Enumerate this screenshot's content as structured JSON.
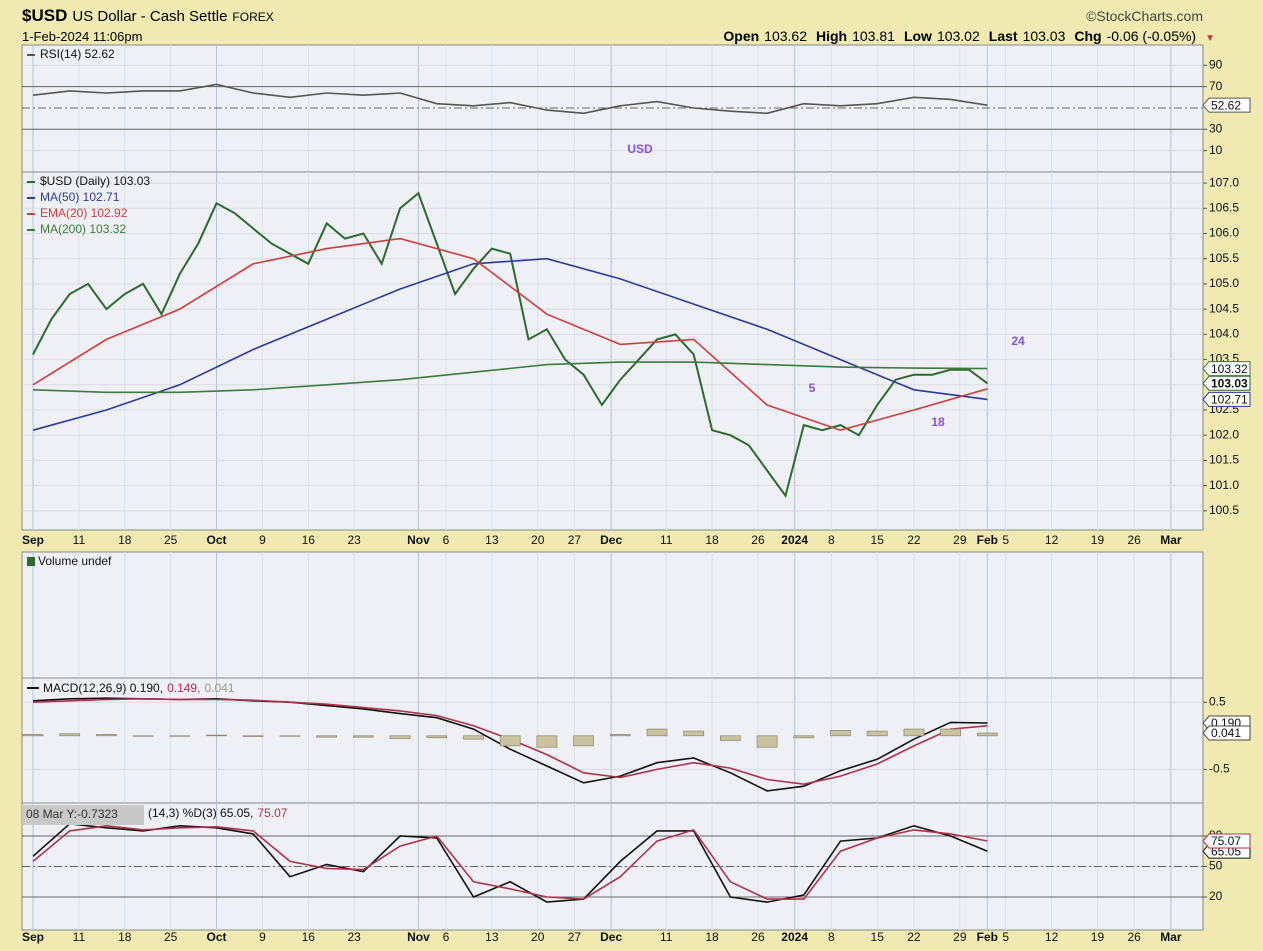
{
  "header": {
    "symbol": "$USD",
    "name": "US Dollar - Cash Settle",
    "exchange": "FOREX",
    "source": "©StockCharts.com",
    "date": "1-Feb-2024 11:06pm",
    "quote": [
      {
        "label": "Open",
        "value": 103.62
      },
      {
        "label": "High",
        "value": 103.81
      },
      {
        "label": "Low",
        "value": 103.02
      },
      {
        "label": "Last",
        "value": 103.03
      },
      {
        "label": "Chg",
        "value": "-0.06 (-0.05%)"
      }
    ]
  },
  "xaxis": {
    "xlim": [
      -1.2,
      127.5
    ],
    "xticks": [
      {
        "value": 0,
        "label": "Sep"
      },
      {
        "value": 5,
        "label": "11"
      },
      {
        "value": 10,
        "label": "18"
      },
      {
        "value": 15,
        "label": "25"
      },
      {
        "value": 20,
        "label": "Oct"
      },
      {
        "value": 25,
        "label": "9"
      },
      {
        "value": 30,
        "label": "16"
      },
      {
        "value": 35,
        "label": "23"
      },
      {
        "value": 42,
        "label": "Nov"
      },
      {
        "value": 45,
        "label": "6"
      },
      {
        "value": 50,
        "label": "13"
      },
      {
        "value": 55,
        "label": "20"
      },
      {
        "value": 59,
        "label": "27"
      },
      {
        "value": 63,
        "label": "Dec"
      },
      {
        "value": 69,
        "label": "11"
      },
      {
        "value": 74,
        "label": "18"
      },
      {
        "value": 79,
        "label": "26"
      },
      {
        "value": 83,
        "label": "2024"
      },
      {
        "value": 87,
        "label": "8"
      },
      {
        "value": 92,
        "label": "15"
      },
      {
        "value": 96,
        "label": "22"
      },
      {
        "value": 101,
        "label": "29"
      },
      {
        "value": 104,
        "label": "Feb"
      },
      {
        "value": 106,
        "label": "5"
      },
      {
        "value": 111,
        "label": "12"
      },
      {
        "value": 116,
        "label": "19"
      },
      {
        "value": 120,
        "label": "26"
      },
      {
        "value": 124,
        "label": "Mar"
      }
    ]
  },
  "chart_data": [
    {
      "type": "line",
      "legend": "stacked",
      "ylim": [
        -10,
        109
      ],
      "yticks": [
        10,
        30,
        70,
        90
      ],
      "bands": [
        30,
        70
      ],
      "midline": 50,
      "annotations": [
        "USD"
      ],
      "series": [
        {
          "name": "RSI(14) 52.62",
          "color": "#555555",
          "tag": true,
          "x": [
            0,
            4,
            8,
            12,
            16,
            20,
            24,
            28,
            32,
            36,
            40,
            44,
            48,
            52,
            56,
            60,
            64,
            68,
            72,
            76,
            80,
            84,
            88,
            92,
            96,
            100,
            104
          ],
          "values": [
            62,
            66,
            64,
            66,
            66,
            72,
            64,
            60,
            64,
            62,
            64,
            54,
            52,
            55,
            48,
            45,
            52,
            56,
            50,
            47,
            45,
            54,
            52,
            54,
            60,
            58,
            52.62
          ]
        }
      ]
    },
    {
      "type": "line",
      "legend": "stacked",
      "ylim": [
        100.12,
        107.22
      ],
      "yticks": [
        100.5,
        {
          "value": 101,
          "label": "101.0"
        },
        101.5,
        {
          "value": 102,
          "label": "102.0"
        },
        102.5,
        {
          "value": 103,
          "label": "103.0"
        },
        103.5,
        {
          "value": 104,
          "label": "104.0"
        },
        104.5,
        {
          "value": 105,
          "label": "105.0"
        },
        105.5,
        {
          "value": 106,
          "label": "106.0"
        },
        106.5,
        {
          "value": 107,
          "label": "107.0"
        }
      ],
      "annotations": [
        "5",
        "18",
        "24"
      ],
      "series": [
        {
          "name": "$USD (Daily) 103.03",
          "color": "#2d6a2d",
          "tag": true,
          "x": [
            0,
            2,
            4,
            6,
            8,
            10,
            12,
            14,
            16,
            18,
            20,
            22,
            24,
            26,
            28,
            30,
            32,
            34,
            36,
            38,
            40,
            42,
            44,
            46,
            48,
            50,
            52,
            54,
            56,
            58,
            60,
            62,
            64,
            66,
            68,
            70,
            72,
            74,
            76,
            78,
            80,
            82,
            84,
            86,
            88,
            90,
            92,
            94,
            96,
            98,
            100,
            102,
            104
          ],
          "values": [
            103.6,
            104.3,
            104.8,
            105.0,
            104.5,
            104.8,
            105.0,
            104.4,
            105.2,
            105.8,
            106.6,
            106.4,
            106.1,
            105.8,
            105.6,
            105.4,
            106.2,
            105.9,
            106.0,
            105.4,
            106.5,
            106.8,
            105.8,
            104.8,
            105.3,
            105.7,
            105.6,
            103.9,
            104.1,
            103.5,
            103.2,
            102.6,
            103.1,
            103.5,
            103.9,
            104.0,
            103.6,
            102.1,
            102.0,
            101.8,
            101.3,
            100.8,
            102.2,
            102.1,
            102.2,
            102.0,
            102.6,
            103.1,
            103.2,
            103.2,
            103.3,
            103.3,
            103.03
          ]
        },
        {
          "name": "MA(50) 102.71",
          "color": "#2b3a9a",
          "tag": true,
          "x": [
            0,
            8,
            16,
            24,
            32,
            40,
            48,
            56,
            64,
            72,
            80,
            88,
            96,
            104
          ],
          "values": [
            102.1,
            102.5,
            103.0,
            103.7,
            104.3,
            104.9,
            105.4,
            105.5,
            105.1,
            104.6,
            104.1,
            103.5,
            102.9,
            102.71
          ]
        },
        {
          "name": "EMA(20) 102.92",
          "color": "#d23c3c",
          "tag": false,
          "x": [
            0,
            8,
            16,
            24,
            32,
            40,
            48,
            56,
            64,
            72,
            80,
            88,
            96,
            104
          ],
          "values": [
            103.0,
            103.9,
            104.5,
            105.4,
            105.7,
            105.9,
            105.5,
            104.4,
            103.8,
            103.9,
            102.6,
            102.1,
            102.5,
            102.92
          ]
        },
        {
          "name": "MA(200) 103.32",
          "color": "#3d7a3d",
          "tag": true,
          "x": [
            0,
            8,
            16,
            24,
            32,
            40,
            48,
            56,
            64,
            72,
            80,
            88,
            96,
            104
          ],
          "values": [
            102.9,
            102.85,
            102.85,
            102.9,
            103.0,
            103.1,
            103.25,
            103.4,
            103.45,
            103.45,
            103.4,
            103.35,
            103.33,
            103.32
          ]
        }
      ]
    },
    {
      "type": "bar",
      "title": "Volume undef",
      "series": []
    },
    {
      "type": "line",
      "legend": "inline",
      "ylim": [
        -1.0,
        0.86
      ],
      "yticks": [
        0.5,
        -0.5
      ],
      "tags": [
        {
          "value": 0.19,
          "label": "0.190"
        },
        {
          "value": 0.041,
          "label": "0.041"
        }
      ],
      "series": [
        {
          "name": "MACD(12,26,9) 0.190,",
          "color": "#111111",
          "style": "line",
          "x": [
            0,
            4,
            8,
            12,
            16,
            20,
            24,
            28,
            32,
            36,
            40,
            44,
            48,
            52,
            56,
            60,
            64,
            68,
            72,
            76,
            80,
            84,
            88,
            92,
            96,
            100,
            104
          ],
          "values": [
            0.52,
            0.55,
            0.56,
            0.55,
            0.54,
            0.55,
            0.52,
            0.5,
            0.45,
            0.4,
            0.33,
            0.27,
            0.1,
            -0.2,
            -0.45,
            -0.7,
            -0.6,
            -0.4,
            -0.33,
            -0.55,
            -0.82,
            -0.75,
            -0.52,
            -0.35,
            -0.05,
            0.2,
            0.19
          ]
        },
        {
          "name": "0.149,",
          "color": "#b0304a",
          "style": "line",
          "x": [
            0,
            4,
            8,
            12,
            16,
            20,
            24,
            28,
            32,
            36,
            40,
            44,
            48,
            52,
            56,
            60,
            64,
            68,
            72,
            76,
            80,
            84,
            88,
            92,
            96,
            100,
            104
          ],
          "values": [
            0.5,
            0.52,
            0.54,
            0.55,
            0.54,
            0.54,
            0.53,
            0.5,
            0.47,
            0.42,
            0.37,
            0.3,
            0.15,
            -0.05,
            -0.28,
            -0.55,
            -0.62,
            -0.5,
            -0.4,
            -0.48,
            -0.65,
            -0.72,
            -0.6,
            -0.42,
            -0.15,
            0.1,
            0.149
          ]
        },
        {
          "name": "0.041",
          "color": "#9a9a80",
          "style": "histogram",
          "x": [
            0,
            4,
            8,
            12,
            16,
            20,
            24,
            28,
            32,
            36,
            40,
            44,
            48,
            52,
            56,
            60,
            64,
            68,
            72,
            76,
            80,
            84,
            88,
            92,
            96,
            100,
            104
          ],
          "values": [
            0.02,
            0.03,
            0.02,
            0,
            0,
            0.01,
            -0.01,
            0,
            -0.02,
            -0.02,
            -0.04,
            -0.03,
            -0.05,
            -0.15,
            -0.17,
            -0.15,
            0.02,
            0.1,
            0.07,
            -0.07,
            -0.17,
            -0.03,
            0.08,
            0.07,
            0.1,
            0.1,
            0.041
          ]
        }
      ]
    },
    {
      "type": "line",
      "legend": "inline",
      "ylim": [
        -12.4,
        112.4
      ],
      "yticks": [
        20,
        50,
        80
      ],
      "bands": [
        20,
        80
      ],
      "midline": 50,
      "cursor_readout": "08 Mar Y:-0.7323",
      "series": [
        {
          "name": "(14,3) %D(3) 65.05,",
          "color": "#111111",
          "tag": true,
          "x": [
            0,
            4,
            8,
            12,
            16,
            20,
            24,
            28,
            32,
            36,
            40,
            44,
            48,
            52,
            56,
            60,
            64,
            68,
            72,
            76,
            80,
            84,
            88,
            92,
            96,
            100,
            104
          ],
          "values": [
            60,
            92,
            88,
            85,
            90,
            88,
            82,
            40,
            52,
            45,
            80,
            78,
            20,
            35,
            15,
            18,
            55,
            85,
            85,
            20,
            15,
            22,
            75,
            78,
            90,
            80,
            65.05
          ]
        },
        {
          "name": "75.07",
          "color": "#b0304a",
          "tag": true,
          "x": [
            0,
            4,
            8,
            12,
            16,
            20,
            24,
            28,
            32,
            36,
            40,
            44,
            48,
            52,
            56,
            60,
            64,
            68,
            72,
            76,
            80,
            84,
            88,
            92,
            96,
            100,
            104
          ],
          "values": [
            55,
            85,
            90,
            86,
            88,
            89,
            85,
            55,
            48,
            47,
            70,
            80,
            35,
            28,
            20,
            18,
            40,
            75,
            86,
            35,
            18,
            18,
            65,
            78,
            86,
            82,
            75.07
          ]
        }
      ]
    }
  ]
}
